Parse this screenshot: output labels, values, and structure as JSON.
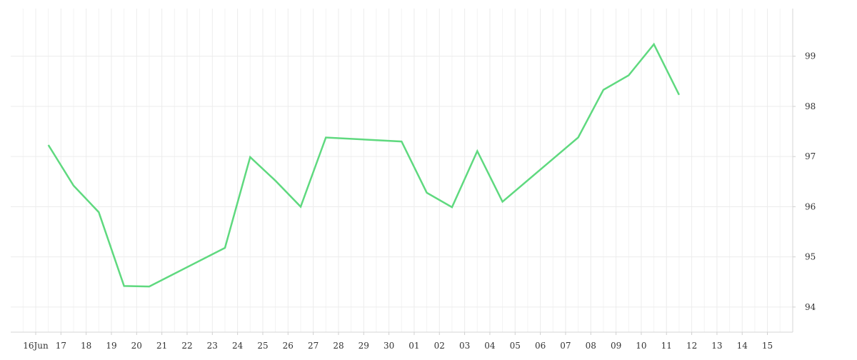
{
  "chart_data": {
    "type": "line",
    "title": "",
    "xlabel": "",
    "ylabel": "",
    "x_ticks": [
      "16Jun",
      "17",
      "18",
      "19",
      "20",
      "21",
      "22",
      "23",
      "24",
      "25",
      "26",
      "27",
      "28",
      "29",
      "30",
      "01",
      "02",
      "03",
      "04",
      "05",
      "06",
      "07",
      "08",
      "09",
      "10",
      "11",
      "12",
      "13",
      "14",
      "15"
    ],
    "y_ticks": [
      94,
      95,
      96,
      97,
      98,
      99
    ],
    "ylim": [
      93.5,
      99.95
    ],
    "xlim": [
      0,
      29
    ],
    "grid": true,
    "y_axis_position": "right",
    "series": [
      {
        "name": "",
        "color": "#5fd97f",
        "points": [
          {
            "x": 0.5,
            "y": 97.23
          },
          {
            "x": 1.5,
            "y": 96.42
          },
          {
            "x": 2.5,
            "y": 95.89
          },
          {
            "x": 3.5,
            "y": 94.42
          },
          {
            "x": 4.5,
            "y": 94.41
          },
          {
            "x": 7.5,
            "y": 95.18
          },
          {
            "x": 8.5,
            "y": 96.99
          },
          {
            "x": 9.5,
            "y": 96.52
          },
          {
            "x": 10.5,
            "y": 96.0
          },
          {
            "x": 11.5,
            "y": 97.38
          },
          {
            "x": 14.5,
            "y": 97.3
          },
          {
            "x": 15.5,
            "y": 96.28
          },
          {
            "x": 16.5,
            "y": 95.99
          },
          {
            "x": 17.5,
            "y": 97.11
          },
          {
            "x": 18.5,
            "y": 96.1
          },
          {
            "x": 21.5,
            "y": 97.38
          },
          {
            "x": 22.5,
            "y": 98.33
          },
          {
            "x": 23.5,
            "y": 98.62
          },
          {
            "x": 24.5,
            "y": 99.24
          },
          {
            "x": 25.5,
            "y": 98.23
          }
        ]
      }
    ]
  }
}
